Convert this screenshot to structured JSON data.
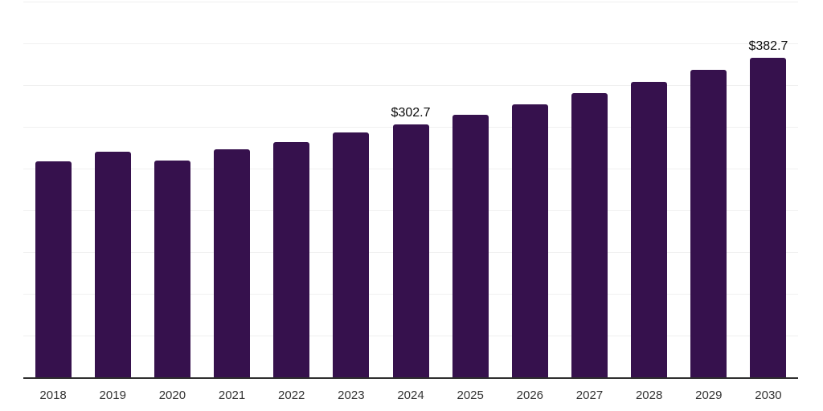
{
  "chart_data": {
    "type": "bar",
    "title": "",
    "categories": [
      "2018",
      "2019",
      "2020",
      "2021",
      "2022",
      "2023",
      "2024",
      "2025",
      "2026",
      "2027",
      "2028",
      "2029",
      "2030"
    ],
    "values": [
      258.8,
      270.2,
      260.1,
      272.9,
      281.4,
      293.4,
      302.7,
      314.8,
      327.3,
      340.4,
      353.9,
      368.0,
      382.7
    ],
    "data_labels": [
      null,
      null,
      null,
      null,
      null,
      null,
      "$302.7",
      null,
      null,
      null,
      null,
      null,
      "$382.7"
    ],
    "xlabel": "",
    "ylabel": "",
    "ylim": [
      0,
      450
    ],
    "grid_step": 50,
    "grid": "horizontal-only",
    "legend_position": "none",
    "y_axis_labels_visible": false,
    "colors": {
      "bar": "#36114D",
      "gridline": "#f0f0f0",
      "axis_line": "#2e2e2e",
      "tick_label": "#333333",
      "data_label": "#0a0a0a",
      "background": "#ffffff"
    }
  }
}
